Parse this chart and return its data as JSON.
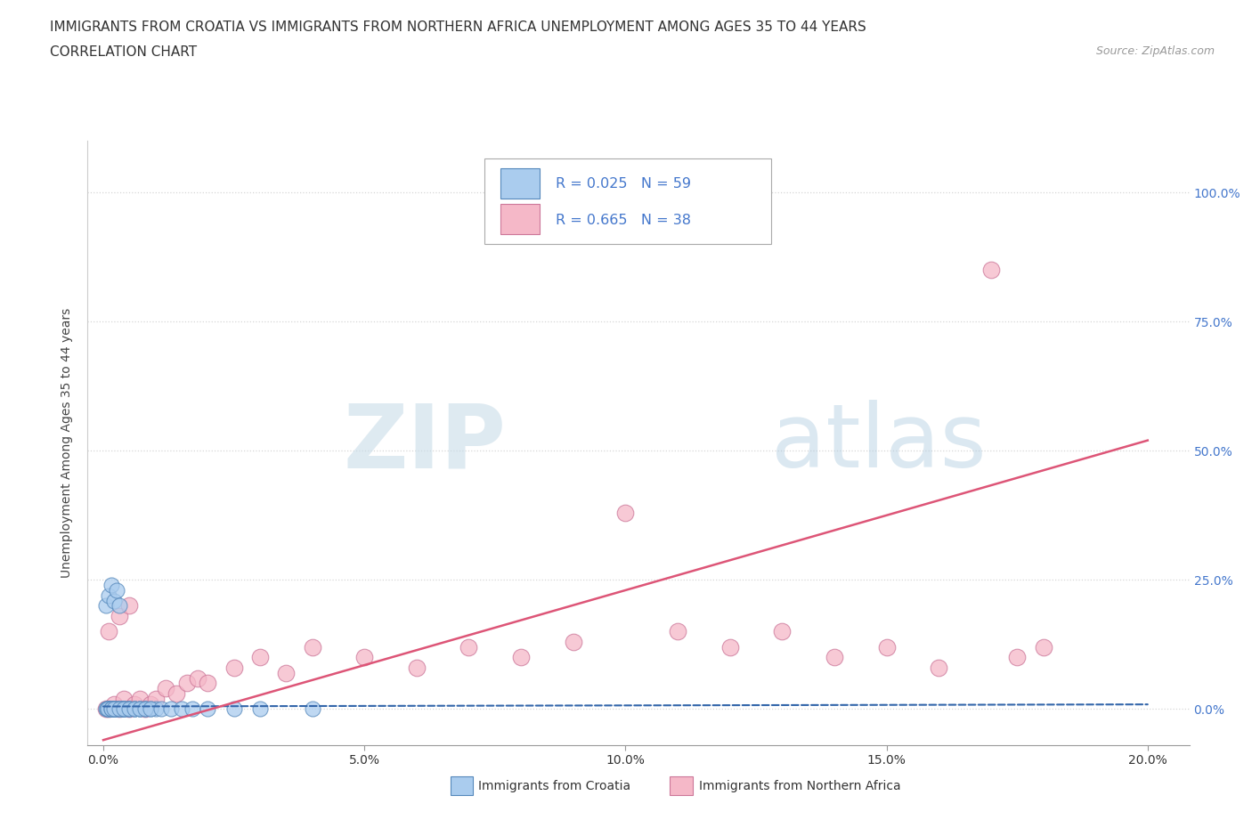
{
  "title_line1": "IMMIGRANTS FROM CROATIA VS IMMIGRANTS FROM NORTHERN AFRICA UNEMPLOYMENT AMONG AGES 35 TO 44 YEARS",
  "title_line2": "CORRELATION CHART",
  "source_text": "Source: ZipAtlas.com",
  "ylabel": "Unemployment Among Ages 35 to 44 years",
  "x_ticks": [
    0.0,
    0.05,
    0.1,
    0.15,
    0.2
  ],
  "x_tick_labels": [
    "0.0%",
    "5.0%",
    "10.0%",
    "15.0%",
    "20.0%"
  ],
  "y_ticks": [
    0.0,
    0.25,
    0.5,
    0.75,
    1.0
  ],
  "y_tick_labels": [
    "0.0%",
    "25.0%",
    "50.0%",
    "75.0%",
    "100.0%"
  ],
  "xlim": [
    -0.003,
    0.208
  ],
  "ylim": [
    -0.07,
    1.1
  ],
  "croatia_color": "#aaccee",
  "croatia_edge_color": "#5588bb",
  "northern_africa_color": "#f5b8c8",
  "northern_africa_edge_color": "#cc7799",
  "croatia_line_color": "#3366aa",
  "northern_africa_line_color": "#dd5577",
  "watermark_zip": "ZIP",
  "watermark_atlas": "atlas",
  "legend_text_color": "#4477cc",
  "legend_R_croatia": "R = 0.025",
  "legend_N_croatia": "N = 59",
  "legend_R_africa": "R = 0.665",
  "legend_N_africa": "N = 38",
  "croatia_x": [
    0.0005,
    0.001,
    0.001,
    0.0015,
    0.002,
    0.002,
    0.002,
    0.0025,
    0.003,
    0.003,
    0.0035,
    0.004,
    0.004,
    0.005,
    0.005,
    0.006,
    0.007,
    0.008,
    0.009,
    0.01,
    0.0005,
    0.001,
    0.0015,
    0.002,
    0.0025,
    0.003,
    0.001,
    0.0008,
    0.0012,
    0.0018,
    0.0006,
    0.0009,
    0.0015,
    0.0022,
    0.0028,
    0.0035,
    0.004,
    0.0045,
    0.005,
    0.006,
    0.007,
    0.008,
    0.0015,
    0.002,
    0.003,
    0.004,
    0.005,
    0.006,
    0.007,
    0.008,
    0.009,
    0.011,
    0.013,
    0.015,
    0.017,
    0.02,
    0.025,
    0.03,
    0.04
  ],
  "croatia_y": [
    0.0,
    0.0,
    0.0,
    0.0,
    0.0,
    0.0,
    0.0,
    0.0,
    0.0,
    0.0,
    0.0,
    0.0,
    0.0,
    0.0,
    0.0,
    0.0,
    0.0,
    0.0,
    0.0,
    0.0,
    0.2,
    0.22,
    0.24,
    0.21,
    0.23,
    0.2,
    0.0,
    0.0,
    0.0,
    0.0,
    0.0,
    0.0,
    0.0,
    0.0,
    0.0,
    0.0,
    0.0,
    0.0,
    0.0,
    0.0,
    0.0,
    0.0,
    0.0,
    0.0,
    0.0,
    0.0,
    0.0,
    0.0,
    0.0,
    0.0,
    0.0,
    0.0,
    0.0,
    0.0,
    0.0,
    0.0,
    0.0,
    0.0,
    0.0
  ],
  "africa_x": [
    0.0005,
    0.001,
    0.002,
    0.003,
    0.004,
    0.005,
    0.006,
    0.007,
    0.008,
    0.009,
    0.01,
    0.012,
    0.014,
    0.016,
    0.018,
    0.02,
    0.025,
    0.03,
    0.035,
    0.04,
    0.05,
    0.06,
    0.07,
    0.08,
    0.09,
    0.1,
    0.11,
    0.12,
    0.13,
    0.14,
    0.15,
    0.16,
    0.17,
    0.175,
    0.18,
    0.001,
    0.003,
    0.005
  ],
  "africa_y": [
    0.0,
    0.0,
    0.01,
    0.0,
    0.02,
    0.0,
    0.01,
    0.02,
    0.0,
    0.01,
    0.02,
    0.04,
    0.03,
    0.05,
    0.06,
    0.05,
    0.08,
    0.1,
    0.07,
    0.12,
    0.1,
    0.08,
    0.12,
    0.1,
    0.13,
    0.38,
    0.15,
    0.12,
    0.15,
    0.1,
    0.12,
    0.08,
    0.85,
    0.1,
    0.12,
    0.15,
    0.18,
    0.2
  ],
  "africa_trend_x": [
    0.0,
    0.2
  ],
  "africa_trend_y": [
    -0.06,
    0.52
  ],
  "croatia_trend_x": [
    0.0,
    0.2
  ],
  "croatia_trend_y": [
    0.005,
    0.009
  ]
}
